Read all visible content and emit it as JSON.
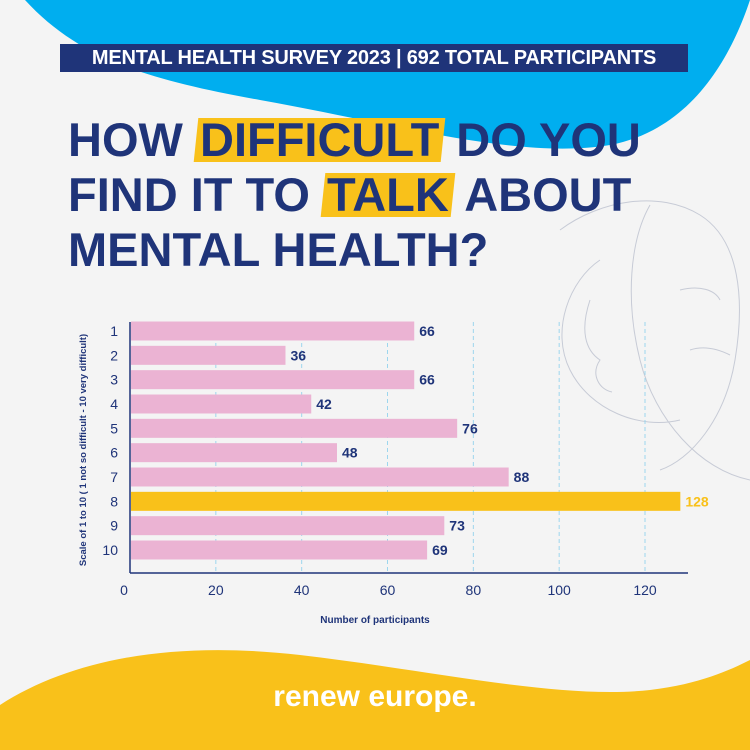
{
  "header": {
    "banner": "MENTAL HEALTH SURVEY 2023 | 692 TOTAL PARTICIPANTS"
  },
  "title": {
    "line1_pre": "HOW",
    "line1_highlight": "DIFFICULT",
    "line1_post": "DO YOU",
    "line2_pre": "FIND IT TO",
    "line2_highlight": "TALK",
    "line2_post": "ABOUT",
    "line3": "MENTAL HEALTH?"
  },
  "colors": {
    "navy": "#1f3479",
    "blue": "#00aeef",
    "yellow": "#f9c11a",
    "pink": "#ebb3d3",
    "grid": "#9dd6ee"
  },
  "chart_data": {
    "type": "bar",
    "orientation": "horizontal",
    "categories": [
      "1",
      "2",
      "3",
      "4",
      "5",
      "6",
      "7",
      "8",
      "9",
      "10"
    ],
    "values": [
      66,
      36,
      66,
      42,
      76,
      48,
      88,
      128,
      73,
      69
    ],
    "highlight_category": "8",
    "xlabel": "Number of participants",
    "ylabel": "Scale of 1 to 10 ( 1 not so difficult - 10 very difficult)",
    "xlim": [
      0,
      130
    ],
    "xticks": [
      0,
      20,
      40,
      60,
      80,
      100,
      120
    ],
    "grid": "vertical dashed"
  },
  "footer": {
    "brand": "renew europe."
  }
}
